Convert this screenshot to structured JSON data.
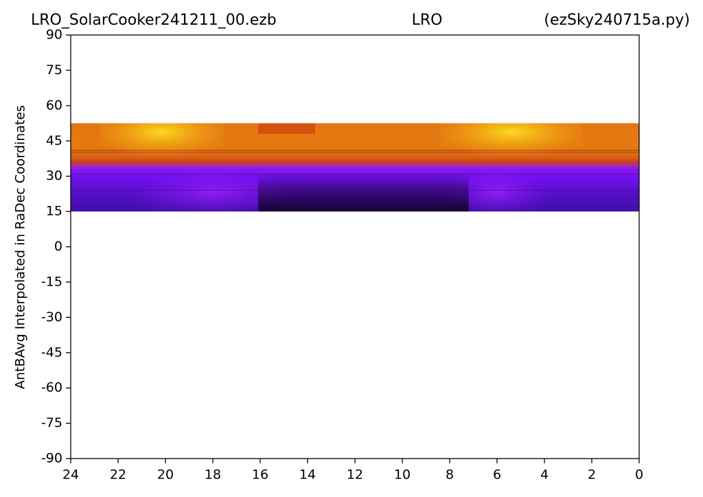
{
  "chart_data": {
    "type": "heatmap",
    "title_left": "LRO_SolarCooker241211_00.ezb",
    "title_center": "LRO",
    "title_right": "(ezSky240715a.py)",
    "ylabel": "AntBAvg Interpolated in RaDec Coordinates",
    "xlim": [
      24,
      0
    ],
    "xticks": [
      24,
      22,
      20,
      18,
      16,
      14,
      12,
      10,
      8,
      6,
      4,
      2,
      0
    ],
    "ylim": [
      -90,
      90
    ],
    "yticks": [
      90,
      75,
      60,
      45,
      30,
      15,
      0,
      -15,
      -30,
      -45,
      -60,
      -75,
      -90
    ],
    "data_x": [
      24,
      0
    ],
    "data_y": [
      15,
      52.5
    ]
  }
}
